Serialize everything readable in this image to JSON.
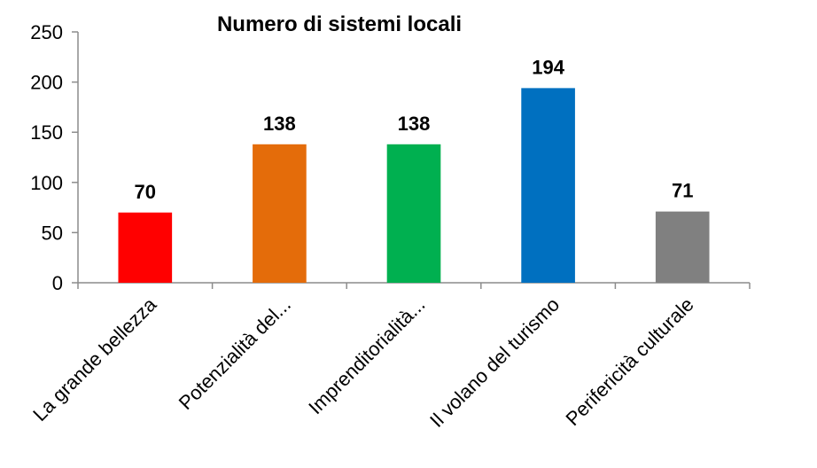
{
  "chart_data": {
    "type": "bar",
    "title": "Numero  di sistemi locali",
    "xlabel": "",
    "ylabel": "",
    "ylim": [
      0,
      250
    ],
    "yticks": [
      0,
      50,
      100,
      150,
      200,
      250
    ],
    "grid": false,
    "legend": "none",
    "categories": [
      "La grande bellezza",
      "Potenzialità del...",
      "Imprenditorialità...",
      "Il volano del turismo",
      "Perifericità culturale"
    ],
    "values": [
      70,
      138,
      138,
      194,
      71
    ],
    "colors": [
      "#ff0000",
      "#e46c0a",
      "#00b050",
      "#0070c0",
      "#808080"
    ]
  }
}
